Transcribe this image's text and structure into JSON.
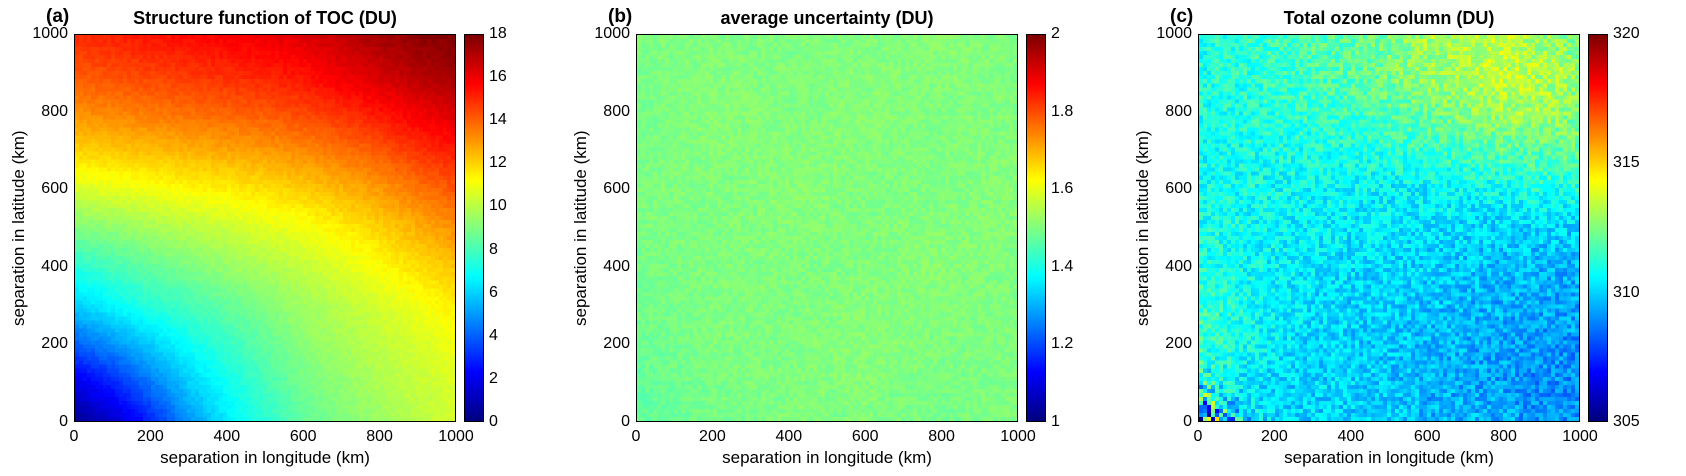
{
  "chart_data": [
    {
      "type": "heatmap",
      "panel_label": "(a)",
      "title": "Structure function of TOC (DU)",
      "xlabel": "separation in longitude (km)",
      "ylabel": "separation in latitude (km)",
      "xlim": [
        0,
        1000
      ],
      "ylim": [
        0,
        1000
      ],
      "xticks": [
        0,
        200,
        400,
        600,
        800,
        1000
      ],
      "yticks": [
        0,
        200,
        400,
        600,
        800,
        1000
      ],
      "colormap": "jet",
      "vmin": 0,
      "vmax": 18,
      "colorbar_ticks": [
        0,
        2,
        4,
        6,
        8,
        10,
        12,
        14,
        16,
        18
      ],
      "grid_x": [
        0,
        100,
        200,
        300,
        400,
        500,
        600,
        700,
        800,
        900,
        1000
      ],
      "grid_y": [
        0,
        100,
        200,
        300,
        400,
        500,
        600,
        700,
        800,
        900,
        1000
      ],
      "values": [
        [
          0.5,
          1.5,
          3.0,
          5.0,
          6.5,
          7.5,
          8.5,
          9.0,
          9.5,
          10.0,
          10.5
        ],
        [
          2.0,
          3.0,
          4.5,
          6.0,
          7.0,
          8.0,
          8.8,
          9.3,
          9.8,
          10.2,
          10.6
        ],
        [
          4.0,
          5.0,
          6.0,
          7.0,
          7.8,
          8.5,
          9.2,
          9.7,
          10.1,
          10.5,
          11.0
        ],
        [
          6.0,
          6.8,
          7.5,
          8.0,
          8.5,
          9.0,
          9.6,
          10.0,
          10.5,
          11.0,
          11.5
        ],
        [
          7.5,
          8.0,
          8.5,
          9.0,
          9.4,
          9.8,
          10.2,
          10.7,
          11.2,
          11.8,
          12.3
        ],
        [
          9.0,
          9.3,
          9.7,
          10.0,
          10.3,
          10.7,
          11.0,
          11.5,
          12.0,
          12.6,
          13.2
        ],
        [
          10.5,
          10.8,
          11.0,
          11.3,
          11.5,
          11.8,
          12.1,
          12.5,
          13.0,
          13.6,
          14.2
        ],
        [
          12.0,
          12.2,
          12.4,
          12.6,
          12.8,
          13.0,
          13.3,
          13.7,
          14.2,
          14.8,
          15.3
        ],
        [
          13.2,
          13.4,
          13.6,
          13.8,
          14.0,
          14.2,
          14.5,
          14.9,
          15.4,
          15.9,
          16.4
        ],
        [
          14.2,
          14.4,
          14.6,
          14.8,
          15.0,
          15.2,
          15.5,
          16.0,
          16.5,
          17.0,
          17.4
        ],
        [
          15.0,
          15.2,
          15.4,
          15.6,
          15.8,
          16.0,
          16.3,
          16.8,
          17.3,
          17.7,
          18.0
        ]
      ],
      "noise_amplitude": 0.2,
      "noise_seed": 3
    },
    {
      "type": "heatmap",
      "panel_label": "(b)",
      "title": "average uncertainty (DU)",
      "xlabel": "separation in longitude (km)",
      "ylabel": "separation in latitude (km)",
      "xlim": [
        0,
        1000
      ],
      "ylim": [
        0,
        1000
      ],
      "xticks": [
        0,
        200,
        400,
        600,
        800,
        1000
      ],
      "yticks": [
        0,
        200,
        400,
        600,
        800,
        1000
      ],
      "colormap": "jet",
      "vmin": 1,
      "vmax": 2,
      "colorbar_ticks": [
        1,
        1.2,
        1.4,
        1.6,
        1.8,
        2
      ],
      "grid_x": [
        0,
        200,
        400,
        600,
        800,
        1000
      ],
      "grid_y": [
        0,
        200,
        400,
        600,
        800,
        1000
      ],
      "values": [
        [
          1.47,
          1.49,
          1.5,
          1.5,
          1.49,
          1.5
        ],
        [
          1.48,
          1.5,
          1.5,
          1.51,
          1.5,
          1.5
        ],
        [
          1.49,
          1.5,
          1.5,
          1.5,
          1.51,
          1.5
        ],
        [
          1.5,
          1.5,
          1.51,
          1.5,
          1.5,
          1.51
        ],
        [
          1.49,
          1.51,
          1.5,
          1.51,
          1.5,
          1.5
        ],
        [
          1.5,
          1.5,
          1.5,
          1.5,
          1.51,
          1.5
        ]
      ],
      "noise_amplitude": 0.02,
      "noise_seed": 5
    },
    {
      "type": "heatmap",
      "panel_label": "(c)",
      "title": "Total ozone column (DU)",
      "xlabel": "separation in longitude (km)",
      "ylabel": "separation in latitude (km)",
      "xlim": [
        0,
        1000
      ],
      "ylim": [
        0,
        1000
      ],
      "xticks": [
        0,
        200,
        400,
        600,
        800,
        1000
      ],
      "yticks": [
        0,
        200,
        400,
        600,
        800,
        1000
      ],
      "colormap": "jet",
      "vmin": 305,
      "vmax": 320,
      "colorbar_ticks": [
        305,
        310,
        315,
        320
      ],
      "grid_x": [
        0,
        100,
        200,
        300,
        400,
        500,
        600,
        700,
        800,
        900,
        1000
      ],
      "grid_y": [
        0,
        100,
        200,
        300,
        400,
        500,
        600,
        700,
        800,
        900,
        1000
      ],
      "values": [
        [
          311.0,
          310.0,
          310.0,
          310.0,
          310.0,
          310.0,
          309.5,
          309.5,
          309.5,
          309.0,
          309.0
        ],
        [
          311.0,
          310.5,
          310.0,
          310.0,
          310.0,
          309.8,
          309.5,
          309.3,
          309.2,
          309.0,
          309.0
        ],
        [
          311.5,
          311.0,
          310.5,
          310.0,
          310.0,
          309.8,
          309.6,
          309.5,
          309.3,
          309.2,
          309.0
        ],
        [
          311.5,
          311.0,
          310.5,
          310.2,
          310.0,
          310.0,
          309.8,
          309.6,
          309.5,
          309.4,
          309.3
        ],
        [
          311.0,
          310.8,
          310.5,
          310.3,
          310.2,
          310.0,
          310.0,
          309.8,
          309.7,
          309.6,
          309.5
        ],
        [
          311.0,
          310.8,
          310.6,
          310.5,
          310.4,
          310.3,
          310.2,
          310.1,
          310.0,
          310.0,
          310.0
        ],
        [
          310.8,
          310.8,
          310.7,
          310.6,
          310.6,
          310.5,
          310.5,
          310.6,
          310.8,
          311.0,
          311.0
        ],
        [
          310.8,
          310.9,
          311.0,
          311.0,
          311.0,
          311.2,
          311.4,
          311.6,
          311.8,
          312.0,
          312.0
        ],
        [
          311.0,
          311.0,
          311.2,
          311.4,
          311.6,
          311.8,
          312.2,
          312.6,
          313.0,
          313.0,
          312.5
        ],
        [
          311.0,
          311.2,
          311.4,
          311.6,
          312.0,
          312.4,
          312.8,
          313.2,
          313.5,
          313.3,
          312.8
        ],
        [
          311.0,
          311.2,
          311.5,
          311.8,
          312.0,
          312.5,
          313.0,
          313.3,
          313.5,
          313.0,
          312.5
        ]
      ],
      "noise_amplitude": 0.9,
      "corner_noise": {
        "amplitude": 10,
        "decay_km": 50
      },
      "noise_seed": 11
    }
  ]
}
